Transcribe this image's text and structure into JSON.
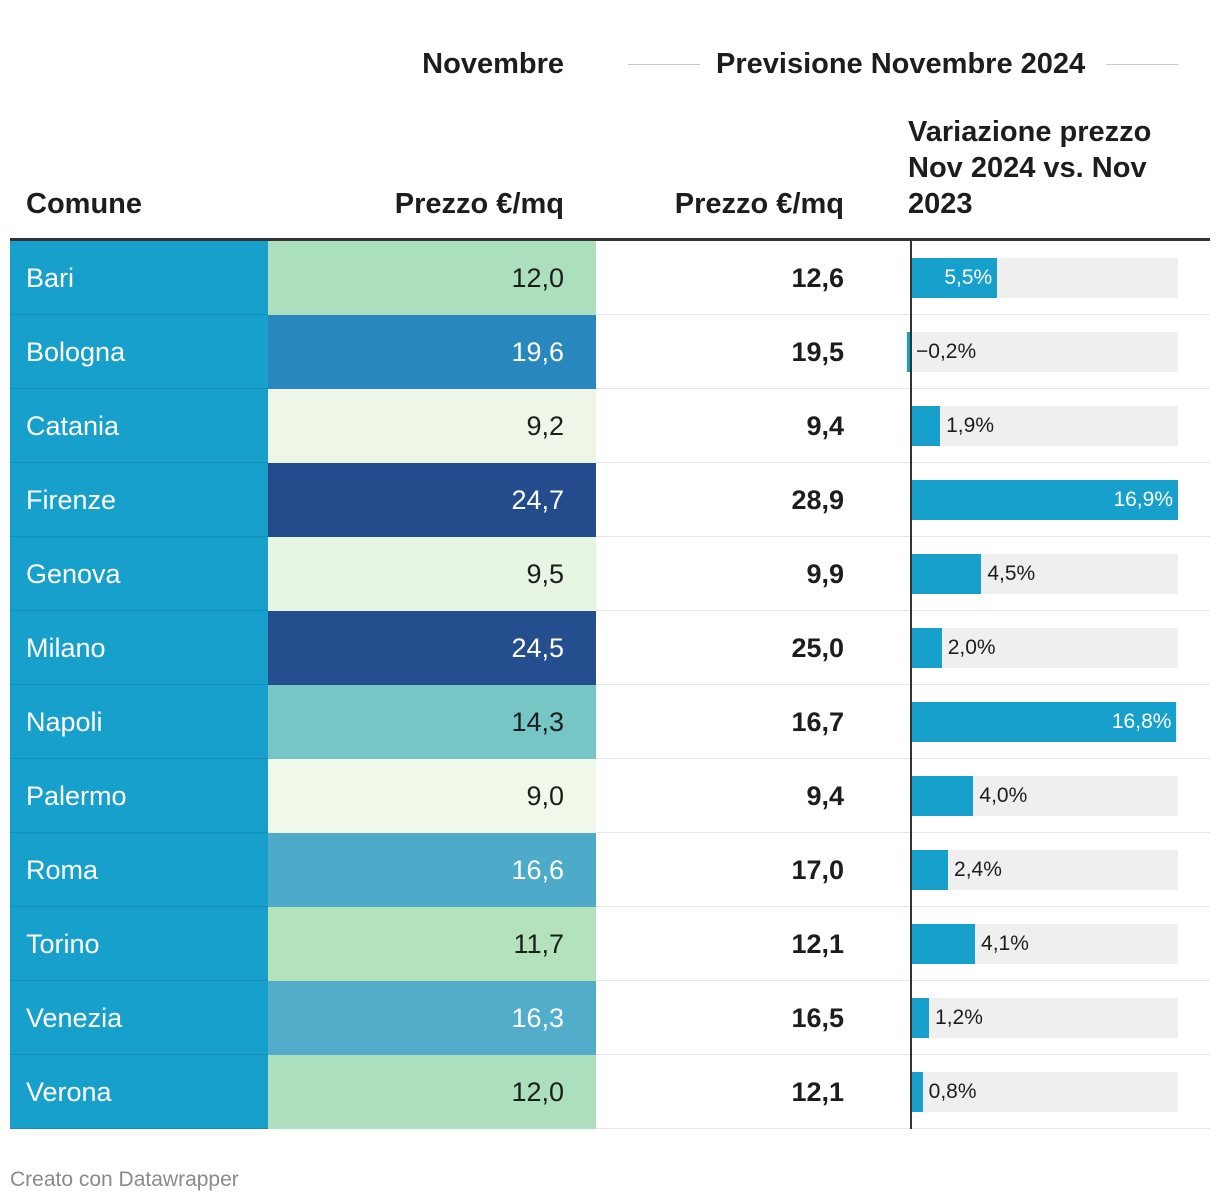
{
  "header": {
    "group_novembre": "Novembre",
    "group_previsione": "Previsione Novembre 2024",
    "col_comune": "Comune",
    "col_prezzo_nov": "Prezzo €/mq",
    "col_prezzo_prev": "Prezzo €/mq",
    "col_variazione": "Variazione prezzo Nov 2024 vs. Nov 2023"
  },
  "colors": {
    "city_bg": "#18a0cc",
    "bar": "#18a0cc",
    "bar_track": "#efefef"
  },
  "chart_data": {
    "type": "table",
    "columns": [
      "Comune",
      "Prezzo €/mq (Novembre)",
      "Prezzo €/mq (Previsione Novembre 2024)",
      "Variazione prezzo Nov 2024 vs. Nov 2023"
    ],
    "bar_range": [
      0,
      16.9
    ],
    "rows": [
      {
        "comune": "Bari",
        "prezzo_nov": "12,0",
        "prezzo_prev": "12,6",
        "variazione": 5.5,
        "variazione_label": "5,5%",
        "nov_color": "#acdfbe",
        "nov_text_color": "#1d1d1d"
      },
      {
        "comune": "Bologna",
        "prezzo_nov": "19,6",
        "prezzo_prev": "19,5",
        "variazione": -0.2,
        "variazione_label": "−0,2%",
        "nov_color": "#2888bd",
        "nov_text_color": "#ffffff"
      },
      {
        "comune": "Catania",
        "prezzo_nov": "9,2",
        "prezzo_prev": "9,4",
        "variazione": 1.9,
        "variazione_label": "1,9%",
        "nov_color": "#eef7e7",
        "nov_text_color": "#1d1d1d"
      },
      {
        "comune": "Firenze",
        "prezzo_nov": "24,7",
        "prezzo_prev": "28,9",
        "variazione": 16.9,
        "variazione_label": "16,9%",
        "nov_color": "#244c8c",
        "nov_text_color": "#ffffff"
      },
      {
        "comune": "Genova",
        "prezzo_nov": "9,5",
        "prezzo_prev": "9,9",
        "variazione": 4.5,
        "variazione_label": "4,5%",
        "nov_color": "#e7f6e2",
        "nov_text_color": "#1d1d1d"
      },
      {
        "comune": "Milano",
        "prezzo_nov": "24,5",
        "prezzo_prev": "25,0",
        "variazione": 2.0,
        "variazione_label": "2,0%",
        "nov_color": "#244e8e",
        "nov_text_color": "#ffffff"
      },
      {
        "comune": "Napoli",
        "prezzo_nov": "14,3",
        "prezzo_prev": "16,7",
        "variazione": 16.8,
        "variazione_label": "16,8%",
        "nov_color": "#76c6c6",
        "nov_text_color": "#1d1d1d"
      },
      {
        "comune": "Palermo",
        "prezzo_nov": "9,0",
        "prezzo_prev": "9,4",
        "variazione": 4.0,
        "variazione_label": "4,0%",
        "nov_color": "#f0f8ea",
        "nov_text_color": "#1d1d1d"
      },
      {
        "comune": "Roma",
        "prezzo_nov": "16,6",
        "prezzo_prev": "17,0",
        "variazione": 2.4,
        "variazione_label": "2,4%",
        "nov_color": "#4eaac9",
        "nov_text_color": "#ffffff"
      },
      {
        "comune": "Torino",
        "prezzo_nov": "11,7",
        "prezzo_prev": "12,1",
        "variazione": 4.1,
        "variazione_label": "4,1%",
        "nov_color": "#b3e2bb",
        "nov_text_color": "#1d1d1d"
      },
      {
        "comune": "Venezia",
        "prezzo_nov": "16,3",
        "prezzo_prev": "16,5",
        "variazione": 1.2,
        "variazione_label": "1,2%",
        "nov_color": "#52adca",
        "nov_text_color": "#ffffff"
      },
      {
        "comune": "Verona",
        "prezzo_nov": "12,0",
        "prezzo_prev": "12,1",
        "variazione": 0.8,
        "variazione_label": "0,8%",
        "nov_color": "#acdfbe",
        "nov_text_color": "#1d1d1d"
      }
    ]
  },
  "footer": {
    "credit": "Creato con Datawrapper"
  }
}
